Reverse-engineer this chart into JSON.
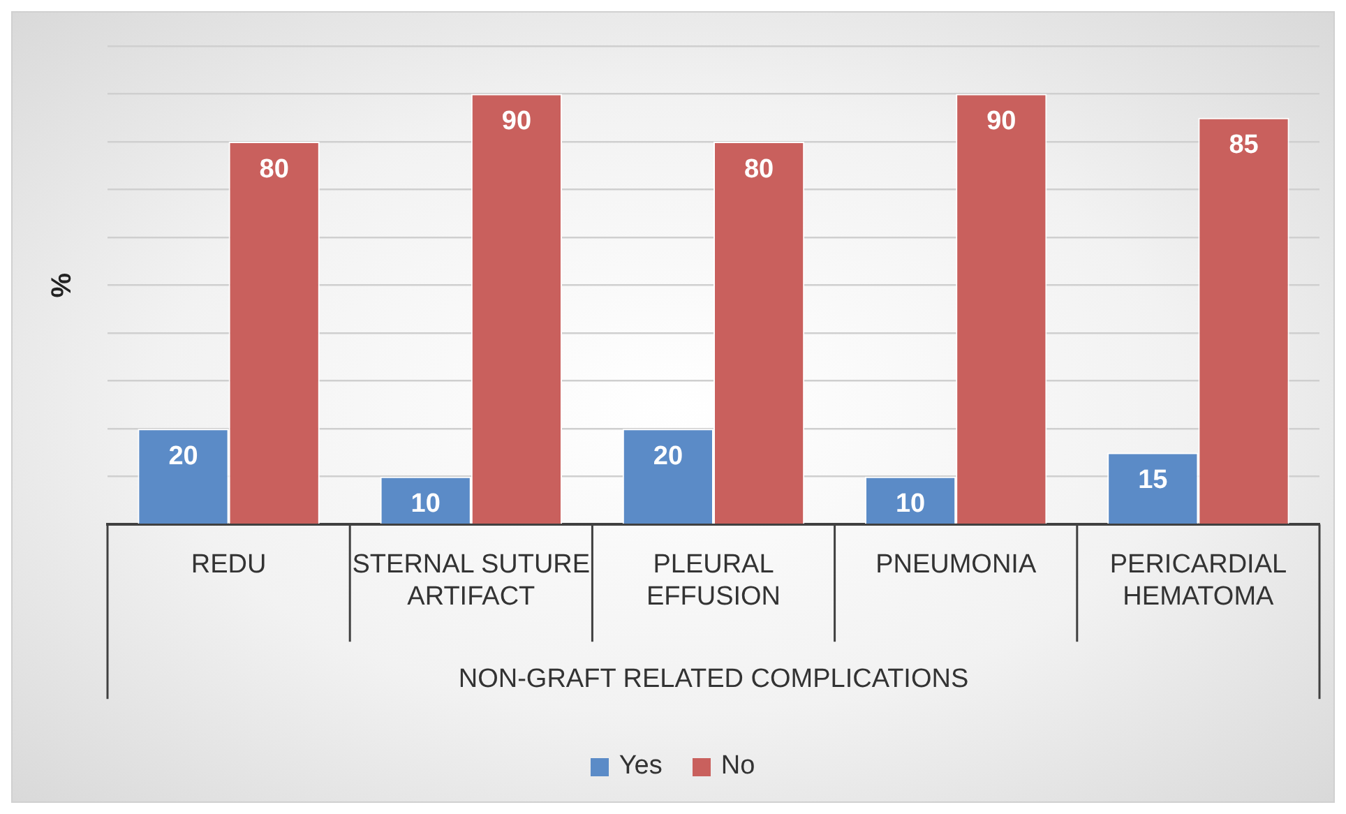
{
  "chart_data": {
    "type": "bar",
    "ylabel": "%",
    "xlabel": "NON-GRAFT RELATED COMPLICATIONS",
    "categories": [
      "REDU",
      "STERNAL SUTURE ARTIFACT",
      "PLEURAL EFFUSION",
      "PNEUMONIA",
      "PERICARDIAL HEMATOMA"
    ],
    "series": [
      {
        "name": "Yes",
        "color": "#5b8bc7",
        "values": [
          20,
          10,
          20,
          10,
          15
        ]
      },
      {
        "name": "No",
        "color": "#c9605d",
        "values": [
          80,
          90,
          80,
          90,
          85
        ]
      }
    ],
    "ylim": [
      0,
      100
    ],
    "grid": "y",
    "legend": "bottom",
    "tick_labels": "x",
    "data_labels": true
  }
}
